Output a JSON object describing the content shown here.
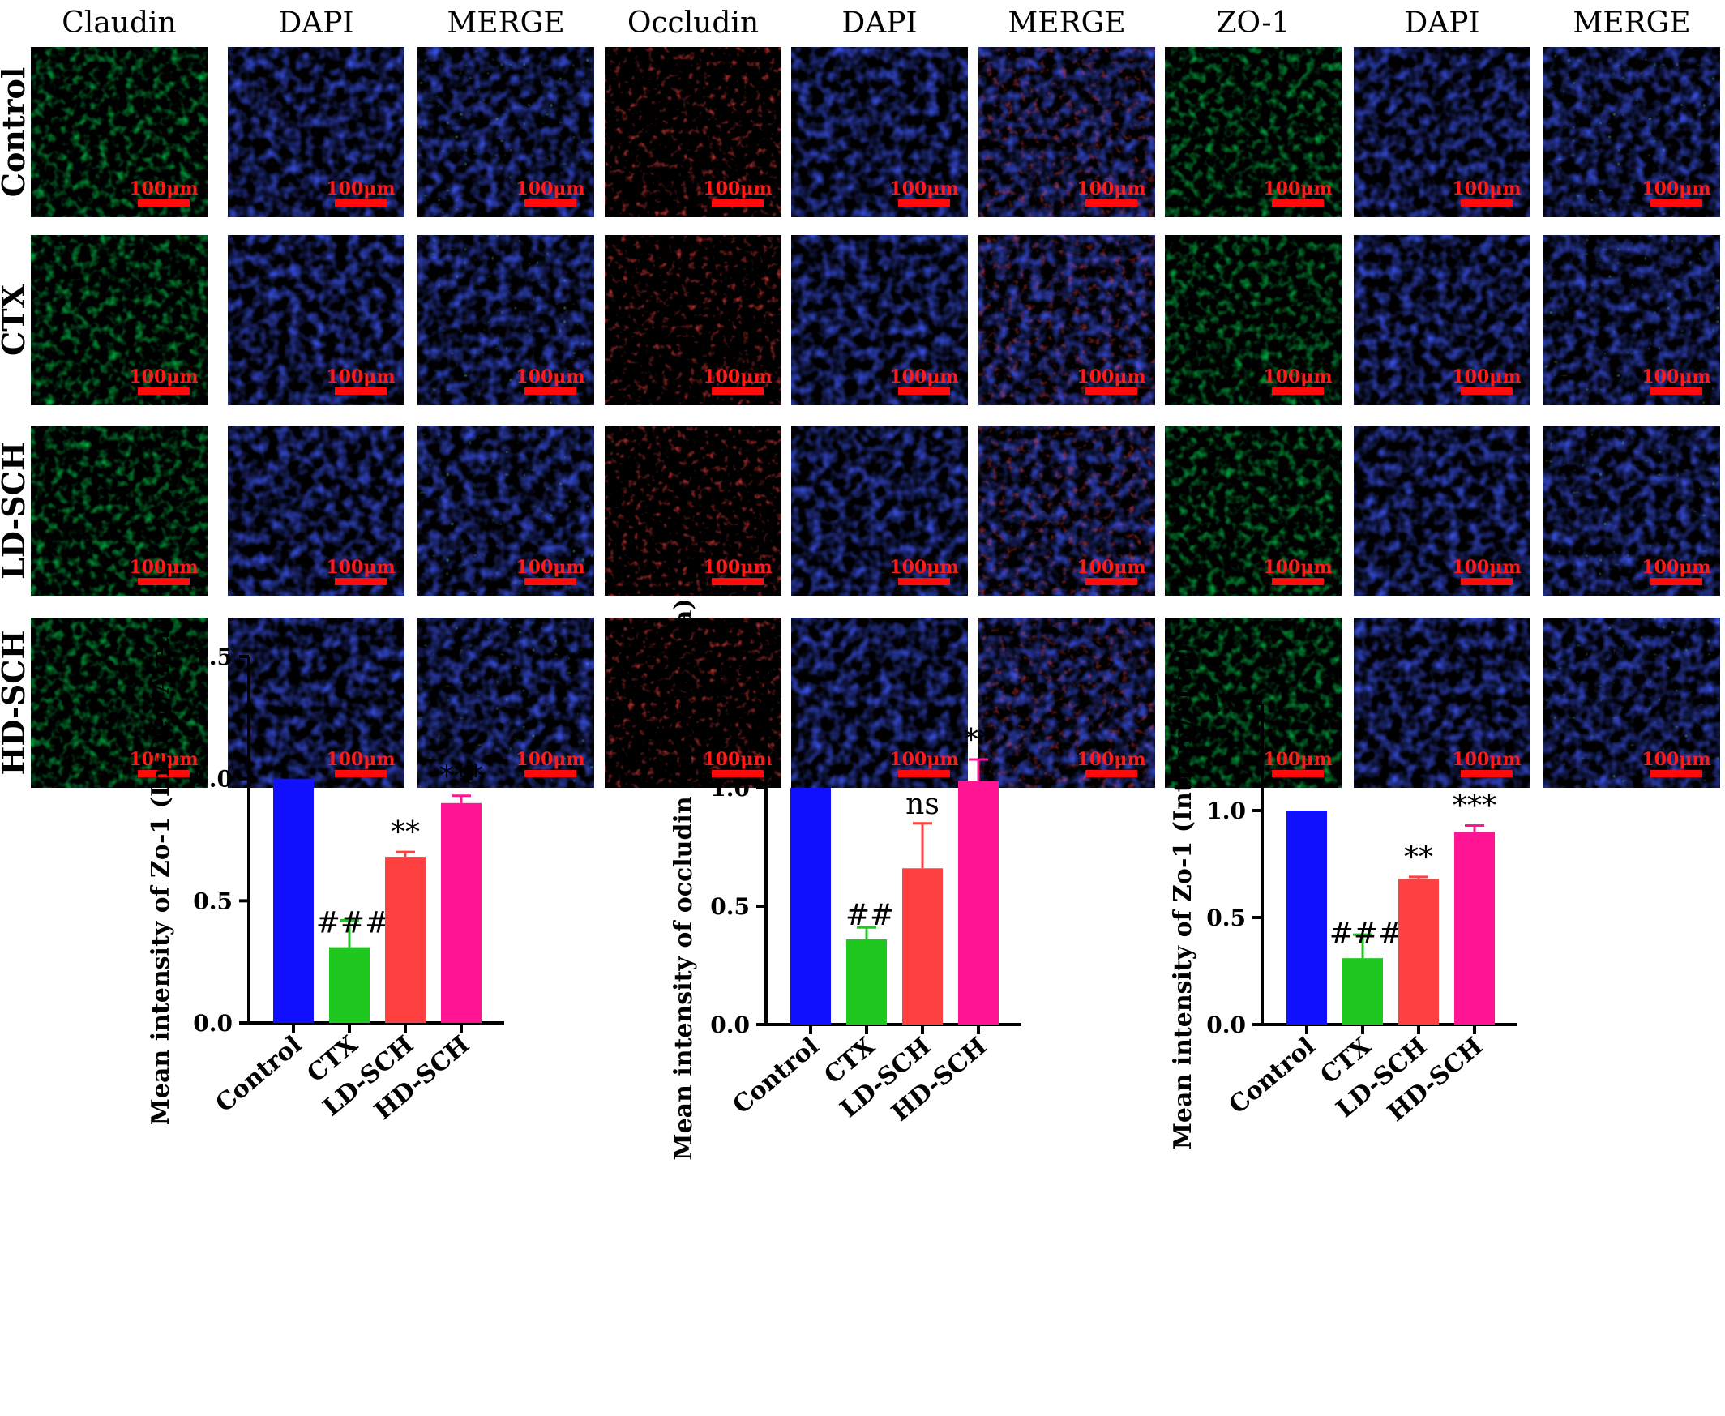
{
  "panel": {
    "column_headers": [
      "Claudin",
      "DAPI",
      "MERGE",
      "Occludin",
      "DAPI",
      "MERGE",
      "ZO-1",
      "DAPI",
      "MERGE"
    ],
    "row_labels": [
      "Control",
      "CTX",
      "LD-SCH",
      "HD-SCH"
    ],
    "scale_bar_label": "100μm",
    "colors": {
      "green_channel": "#1f8f1f",
      "blue_channel": "#1a2fd8",
      "red_channel": "#e01010",
      "scale_bar": "#ff0a0a",
      "scale_text": "#ff1a1a"
    }
  },
  "chart_data": [
    {
      "type": "bar",
      "categories": [
        "Control",
        "CTX",
        "LD-SCH",
        "HD-SCH"
      ],
      "values": [
        1.0,
        0.31,
        0.68,
        0.9
      ],
      "errors": [
        0.0,
        0.11,
        0.02,
        0.03
      ],
      "annotations": [
        "",
        "###",
        "**",
        "***"
      ],
      "colors": [
        "#1010ff",
        "#1ec81e",
        "#ff4040",
        "#ff1493"
      ],
      "ylabel": "Mean intensity of Zo-1 (IntDen/Area)",
      "ylim": [
        0,
        1.5
      ],
      "yticks": [
        "0.0",
        "0.5",
        "1.0",
        "1.5"
      ]
    },
    {
      "type": "bar",
      "categories": [
        "Control",
        "CTX",
        "LD-SCH",
        "HD-SCH"
      ],
      "values": [
        1.0,
        0.36,
        0.66,
        1.03
      ],
      "errors": [
        0.0,
        0.05,
        0.19,
        0.09
      ],
      "annotations": [
        "",
        "##",
        "ns",
        "**"
      ],
      "colors": [
        "#1010ff",
        "#1ec81e",
        "#ff4040",
        "#ff1493"
      ],
      "ylabel": "Mean intensity of occludin (IntDen/Area)",
      "ylim": [
        0,
        1.5
      ],
      "yticks": [
        "0.0",
        "0.5",
        "1.0",
        "1.5"
      ]
    },
    {
      "type": "bar",
      "categories": [
        "Control",
        "CTX",
        "LD-SCH",
        "HD-SCH"
      ],
      "values": [
        1.0,
        0.31,
        0.68,
        0.9
      ],
      "errors": [
        0.0,
        0.11,
        0.01,
        0.03
      ],
      "annotations": [
        "",
        "###",
        "**",
        "***"
      ],
      "colors": [
        "#1010ff",
        "#1ec81e",
        "#ff4040",
        "#ff1493"
      ],
      "ylabel": "Mean intensity of Zo-1 (IntDen/Area)",
      "ylim": [
        0,
        1.5
      ],
      "yticks": [
        "0.0",
        "0.5",
        "1.0",
        "1.5"
      ]
    }
  ]
}
